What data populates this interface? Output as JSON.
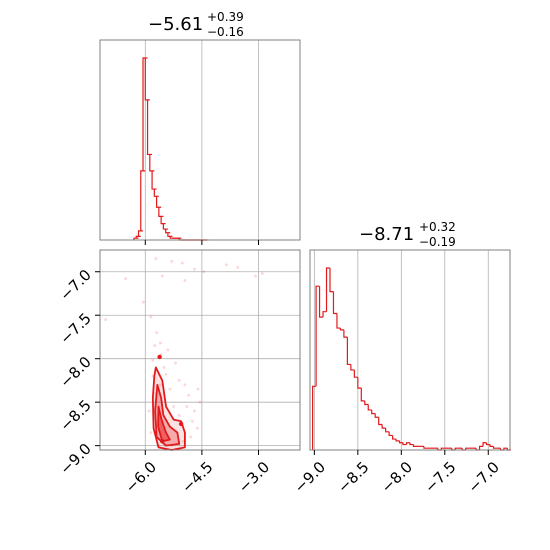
{
  "colors": {
    "accent": "#e31a1c",
    "grid": "#b0b0b0",
    "frame": "#808080"
  },
  "chart_data": {
    "type": "corner",
    "parameters": [
      {
        "summary_main": "−5.61",
        "summary_plus": "+0.39",
        "summary_minus": "−0.16"
      },
      {
        "summary_main": "−8.71",
        "summary_plus": "+0.32",
        "summary_minus": "−0.19"
      }
    ],
    "panels": [
      {
        "id": "hist_param1",
        "type": "histogram",
        "xlim": [
          -7.2,
          -1.9
        ],
        "grid_x": [
          -6.0,
          -4.5,
          -3.0
        ],
        "bins_left": [
          -6.3,
          -6.24,
          -6.18,
          -6.12,
          -6.06,
          -6.0,
          -5.94,
          -5.88,
          -5.82,
          -5.76,
          -5.7,
          -5.64,
          -5.58,
          -5.52,
          -5.46,
          -5.4,
          -5.34,
          -5.28,
          -5.22,
          -5.16,
          -5.1,
          -5.04,
          -4.98,
          -4.92,
          -4.86,
          -4.8,
          -4.74,
          -4.68,
          -4.62,
          -4.56,
          -4.5,
          -4.44
        ],
        "bin_width": 0.12,
        "counts": [
          1,
          2,
          5,
          38,
          100,
          77,
          47,
          38,
          28,
          24,
          18,
          13,
          9,
          6,
          4,
          2,
          1,
          1,
          1,
          1,
          0,
          0,
          0,
          0,
          0,
          0,
          0,
          0,
          0,
          0,
          0,
          0
        ]
      },
      {
        "id": "scatter_2d",
        "type": "scatter_contour",
        "xlim": [
          -7.2,
          -1.9
        ],
        "ylim": [
          -9.05,
          -6.75
        ],
        "xticks": [
          -6.0,
          -4.5,
          -3.0
        ],
        "xtick_labels": [
          "−6.0",
          "−4.5",
          "−3.0"
        ],
        "yticks": [
          -7.0,
          -7.5,
          -8.0,
          -8.5,
          -9.0
        ],
        "ytick_labels": [
          "−7.0",
          "−7.5",
          "−8.0",
          "−8.5",
          "−9.0"
        ],
        "contour_levels": [
          [
            [
              -5.72,
              -8.1
            ],
            [
              -5.55,
              -8.25
            ],
            [
              -5.45,
              -8.55
            ],
            [
              -5.25,
              -8.7
            ],
            [
              -5.05,
              -8.72
            ],
            [
              -4.95,
              -8.85
            ],
            [
              -4.95,
              -9.02
            ],
            [
              -5.3,
              -9.05
            ],
            [
              -5.65,
              -9.02
            ],
            [
              -5.78,
              -8.8
            ],
            [
              -5.8,
              -8.45
            ],
            [
              -5.76,
              -8.2
            ]
          ],
          [
            [
              -5.68,
              -8.3
            ],
            [
              -5.58,
              -8.45
            ],
            [
              -5.52,
              -8.65
            ],
            [
              -5.35,
              -8.78
            ],
            [
              -5.15,
              -8.85
            ],
            [
              -5.1,
              -8.98
            ],
            [
              -5.45,
              -9.0
            ],
            [
              -5.7,
              -8.9
            ],
            [
              -5.74,
              -8.6
            ]
          ],
          [
            [
              -5.65,
              -8.55
            ],
            [
              -5.57,
              -8.7
            ],
            [
              -5.45,
              -8.85
            ],
            [
              -5.35,
              -8.93
            ],
            [
              -5.55,
              -8.95
            ],
            [
              -5.66,
              -8.78
            ]
          ]
        ],
        "highlight_points": [
          [
            -5.62,
            -7.98
          ],
          [
            -5.05,
            -8.75
          ],
          [
            -5.55,
            -8.95
          ]
        ],
        "scatter_points": [
          [
            -6.52,
            -7.08
          ],
          [
            -5.72,
            -6.85
          ],
          [
            -5.3,
            -6.88
          ],
          [
            -5.02,
            -6.9
          ],
          [
            -4.7,
            -6.97
          ],
          [
            -4.45,
            -7.0
          ],
          [
            -3.85,
            -6.92
          ],
          [
            -3.55,
            -6.95
          ],
          [
            -3.08,
            -7.05
          ],
          [
            -2.9,
            -7.02
          ],
          [
            -5.55,
            -7.05
          ],
          [
            -4.95,
            -7.1
          ],
          [
            -7.05,
            -7.55
          ],
          [
            -6.05,
            -7.35
          ],
          [
            -5.85,
            -7.52
          ],
          [
            -5.7,
            -7.7
          ],
          [
            -5.75,
            -7.85
          ],
          [
            -5.6,
            -7.82
          ],
          [
            -5.58,
            -7.95
          ],
          [
            -5.8,
            -8.02
          ],
          [
            -5.4,
            -7.9
          ],
          [
            -5.2,
            -8.05
          ],
          [
            -5.45,
            -8.18
          ],
          [
            -5.1,
            -8.25
          ],
          [
            -4.95,
            -8.3
          ],
          [
            -4.85,
            -8.42
          ],
          [
            -4.6,
            -8.35
          ],
          [
            -4.55,
            -8.5
          ],
          [
            -4.7,
            -8.6
          ],
          [
            -4.75,
            -8.72
          ],
          [
            -4.62,
            -8.8
          ],
          [
            -4.8,
            -8.9
          ],
          [
            -5.0,
            -8.95
          ],
          [
            -5.25,
            -8.55
          ],
          [
            -5.35,
            -8.35
          ],
          [
            -5.6,
            -8.3
          ],
          [
            -5.72,
            -8.4
          ],
          [
            -5.9,
            -8.6
          ],
          [
            -5.85,
            -8.85
          ],
          [
            -5.65,
            -9.0
          ],
          [
            -5.3,
            -9.0
          ],
          [
            -5.1,
            -8.65
          ],
          [
            -4.9,
            -8.55
          ],
          [
            -5.5,
            -8.1
          ],
          [
            -5.8,
            -8.2
          ]
        ]
      },
      {
        "id": "hist_param2",
        "type": "histogram",
        "xlim": [
          -9.05,
          -6.75
        ],
        "grid_x": [
          -9.0,
          -8.5,
          -8.0,
          -7.5,
          -7.0
        ],
        "xticks": [
          -9.0,
          -8.5,
          -8.0,
          -7.5,
          -7.0
        ],
        "xtick_labels": [
          "−9.0",
          "−8.5",
          "−8.0",
          "−7.5",
          "−7.0"
        ],
        "bins_left": [
          -9.02,
          -8.98,
          -8.94,
          -8.9,
          -8.86,
          -8.82,
          -8.78,
          -8.74,
          -8.7,
          -8.66,
          -8.62,
          -8.58,
          -8.54,
          -8.5,
          -8.46,
          -8.42,
          -8.38,
          -8.34,
          -8.3,
          -8.26,
          -8.22,
          -8.18,
          -8.14,
          -8.1,
          -8.06,
          -8.02,
          -7.98,
          -7.94,
          -7.9,
          -7.86,
          -7.82,
          -7.78,
          -7.74,
          -7.7,
          -7.66,
          -7.62,
          -7.58,
          -7.54,
          -7.5,
          -7.46,
          -7.42,
          -7.38,
          -7.34,
          -7.3,
          -7.26,
          -7.22,
          -7.18,
          -7.14,
          -7.1,
          -7.06,
          -7.02,
          -6.98,
          -6.94,
          -6.9,
          -6.86,
          -6.82,
          -6.78
        ],
        "bin_width": 0.04,
        "counts": [
          35,
          90,
          73,
          76,
          100,
          87,
          75,
          67,
          66,
          62,
          47,
          44,
          40,
          34,
          27,
          25,
          22,
          20,
          18,
          14,
          12,
          10,
          8,
          6,
          5,
          4,
          3,
          4,
          3,
          2,
          2,
          2,
          1,
          1,
          1,
          1,
          0,
          1,
          1,
          1,
          0,
          1,
          1,
          0,
          1,
          1,
          1,
          0,
          2,
          4,
          3,
          2,
          1,
          1,
          0,
          1,
          0
        ]
      }
    ]
  }
}
